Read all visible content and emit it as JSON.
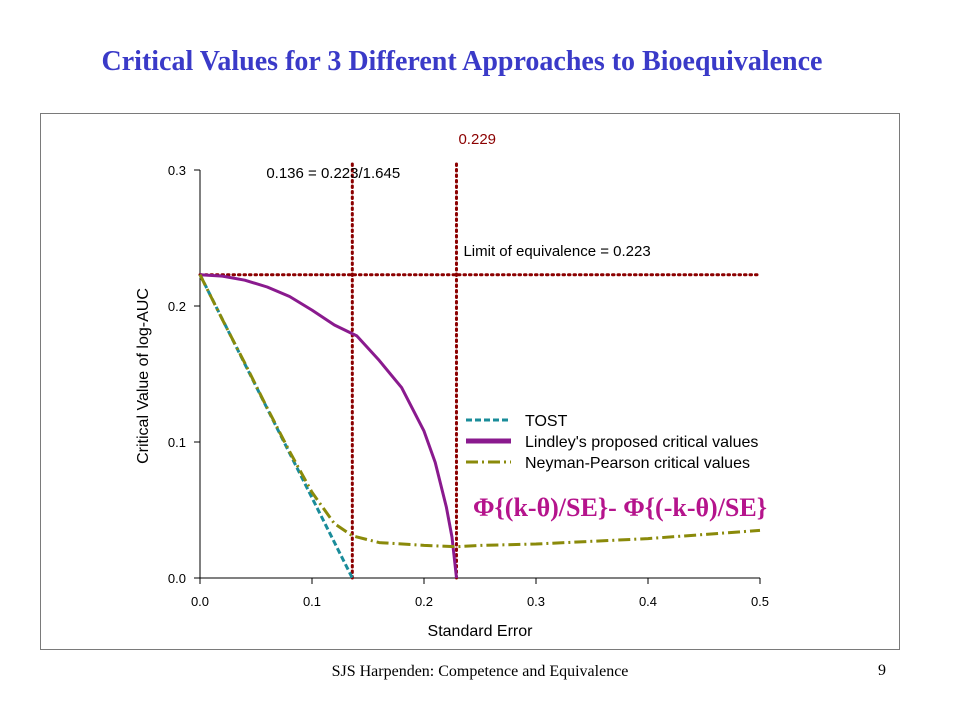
{
  "slide": {
    "title": "Critical Values for 3 Different Approaches to Bioequivalence",
    "footer": "SJS Harpenden: Competence and Equivalence",
    "page_number": "9"
  },
  "colors": {
    "title": "#3a3ac8",
    "ref_lines": "#8b0000",
    "tost": "#1a8c9a",
    "lindley": "#8a1a8e",
    "neyman_pearson": "#8a8a0a",
    "formula": "#b5148c"
  },
  "chart_data": {
    "type": "line",
    "title": "",
    "xlabel": "Standard Error",
    "ylabel": "Critical Value of log-AUC",
    "xlim": [
      0.0,
      0.5
    ],
    "ylim": [
      0.0,
      0.3
    ],
    "x_ticks": [
      "0.0",
      "0.1",
      "0.2",
      "0.3",
      "0.4",
      "0.5"
    ],
    "y_ticks": [
      "0.0",
      "0.1",
      "0.2",
      "0.3"
    ],
    "grid": false,
    "legend_position": "center-right",
    "series": [
      {
        "name": "TOST",
        "color": "#1a8c9a",
        "style": "dashed",
        "x": [
          0.0,
          0.136
        ],
        "y": [
          0.223,
          0.0
        ]
      },
      {
        "name": "Lindley's proposed critical values",
        "color": "#8a1a8e",
        "style": "solid",
        "x": [
          0.0,
          0.02,
          0.04,
          0.06,
          0.08,
          0.1,
          0.12,
          0.14,
          0.16,
          0.18,
          0.2,
          0.21,
          0.22,
          0.225,
          0.229
        ],
        "y": [
          0.223,
          0.222,
          0.219,
          0.214,
          0.207,
          0.197,
          0.186,
          0.178,
          0.16,
          0.14,
          0.108,
          0.085,
          0.052,
          0.03,
          0.0
        ]
      },
      {
        "name": "Neyman-Pearson critical values",
        "color": "#8a8a0a",
        "style": "dashed",
        "x": [
          0.0,
          0.02,
          0.04,
          0.06,
          0.08,
          0.1,
          0.12,
          0.136,
          0.16,
          0.2,
          0.229,
          0.25,
          0.3,
          0.35,
          0.4,
          0.45,
          0.5
        ],
        "y": [
          0.223,
          0.19,
          0.158,
          0.125,
          0.093,
          0.063,
          0.04,
          0.031,
          0.026,
          0.024,
          0.023,
          0.024,
          0.025,
          0.027,
          0.029,
          0.032,
          0.035
        ]
      }
    ],
    "reference_lines": {
      "vertical": [
        0.136,
        0.229
      ],
      "horizontal": [
        0.223
      ]
    },
    "annotations": {
      "vline1_label": "0.136 = 0.223/1.645",
      "vline2_label": "0.229",
      "hline_label": "Limit of equivalence = 0.223",
      "formula": "Φ{(k-θ)/SE}- Φ{(-k-θ)/SE}"
    }
  }
}
